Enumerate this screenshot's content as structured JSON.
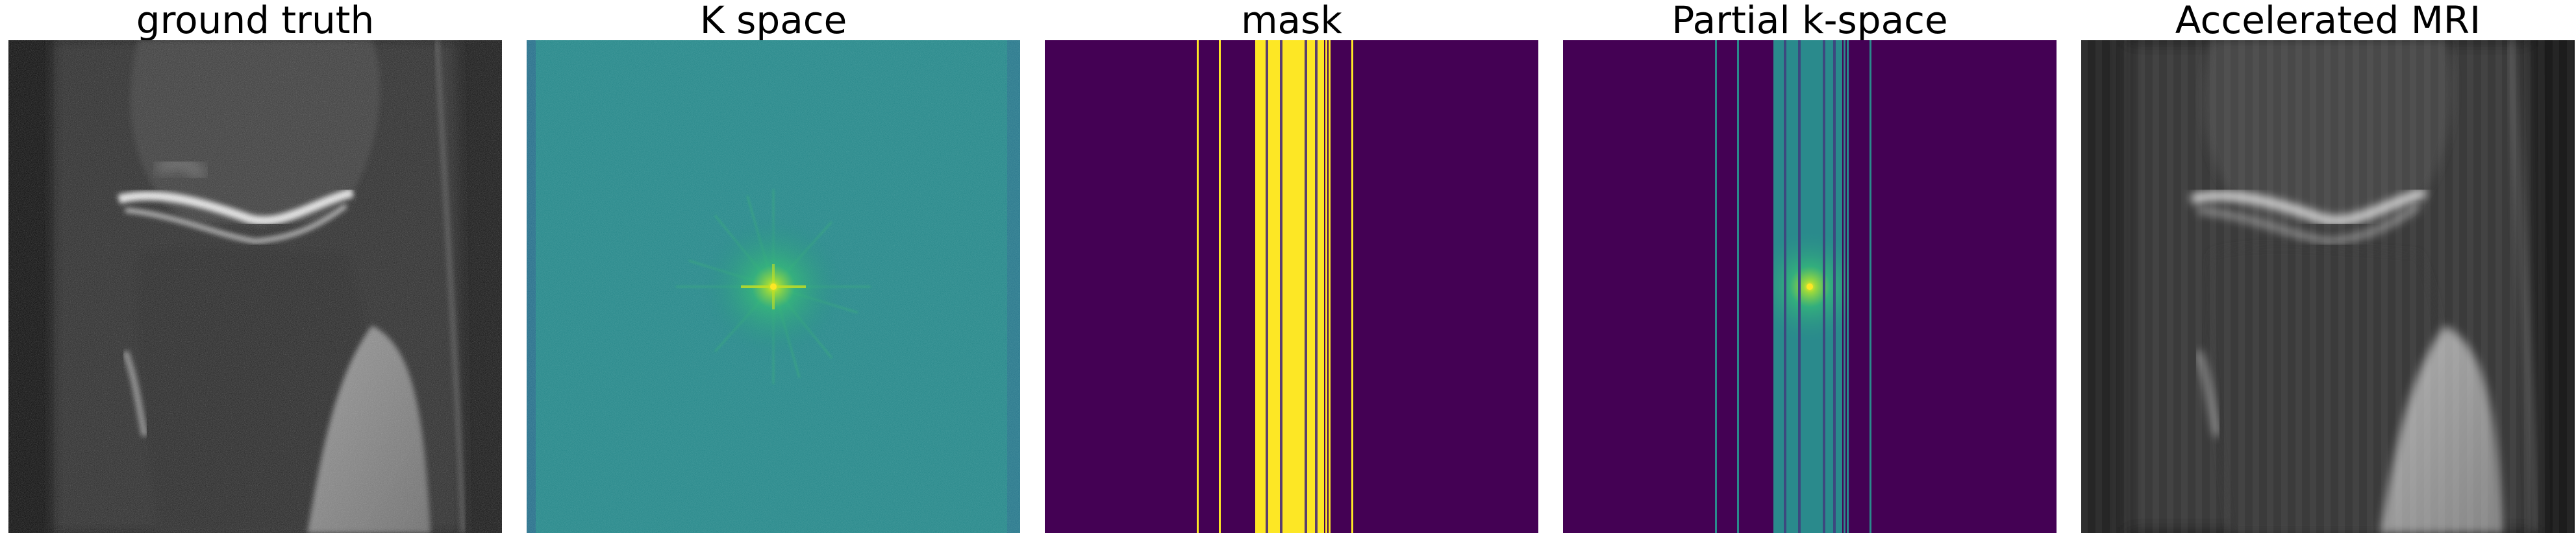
{
  "figure": {
    "panels": [
      {
        "id": "ground-truth",
        "title": "ground truth",
        "colormap": "gray"
      },
      {
        "id": "k-space",
        "title": "K space",
        "colormap": "viridis"
      },
      {
        "id": "mask",
        "title": "mask",
        "colormap": "viridis"
      },
      {
        "id": "partial-k-space",
        "title": "Partial k-space",
        "colormap": "viridis"
      },
      {
        "id": "accelerated-mri",
        "title": "Accelerated MRI",
        "colormap": "gray"
      }
    ]
  },
  "colors": {
    "viridis_low": "#440154",
    "viridis_mid": "#21918c",
    "viridis_high": "#fde725",
    "kspace_bg": "#2a8a8c",
    "gray_dark": "#111111",
    "gray_bright": "#eeeeee"
  }
}
